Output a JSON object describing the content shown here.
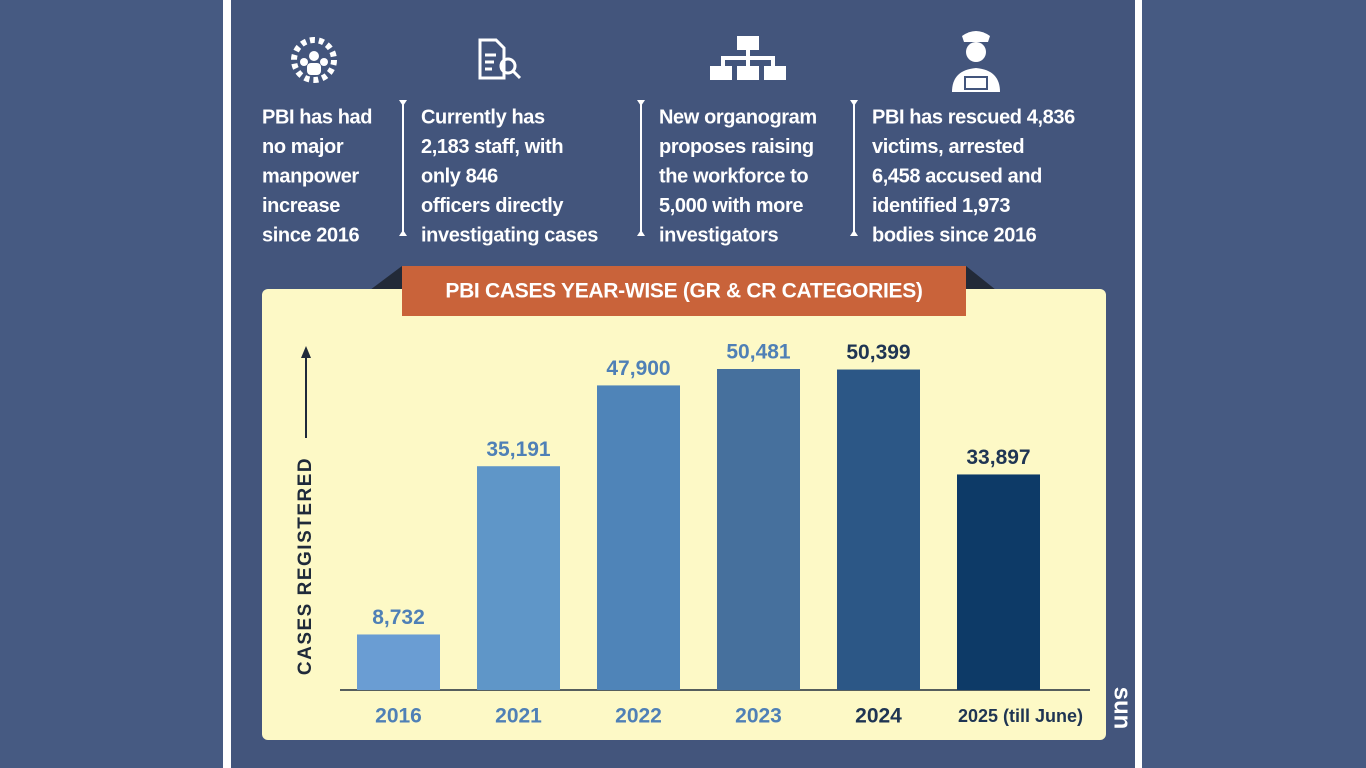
{
  "info": [
    {
      "lines": [
        "PBI has had",
        "no major",
        "manpower",
        "increase",
        "since 2016"
      ]
    },
    {
      "lines": [
        "Currently has",
        "2,183 staff, with",
        "only 846",
        "officers directly",
        "investigating cases"
      ]
    },
    {
      "lines": [
        "New organogram",
        "proposes raising",
        "the workforce to",
        "5,000 with more",
        "investigators"
      ]
    },
    {
      "lines": [
        "PBI has rescued 4,836",
        "victims, arrested",
        "6,458 accused and",
        "identified 1,973",
        "bodies since 2016"
      ]
    }
  ],
  "logo": "sun",
  "chart_data": {
    "type": "bar",
    "title": "PBI CASES YEAR-WISE (GR & CR CATEGORIES)",
    "y_label": "CASES REGISTERED",
    "categories": [
      "2016",
      "2021",
      "2022",
      "2023",
      "2024",
      "2025 (till June)"
    ],
    "values": [
      8732,
      35191,
      47900,
      50481,
      50399,
      33897
    ],
    "value_labels": [
      "8,732",
      "35,191",
      "47,900",
      "50,481",
      "50,399",
      "33,897"
    ],
    "colors": [
      "#6a9dd3",
      "#5f96c8",
      "#4f84b8",
      "#46709d",
      "#2c5786",
      "#0d3a67"
    ],
    "label_colors": [
      "#4f80b6",
      "#4f80b6",
      "#4f80b6",
      "#4f80b6",
      "#1f3553",
      "#1f3553"
    ]
  }
}
